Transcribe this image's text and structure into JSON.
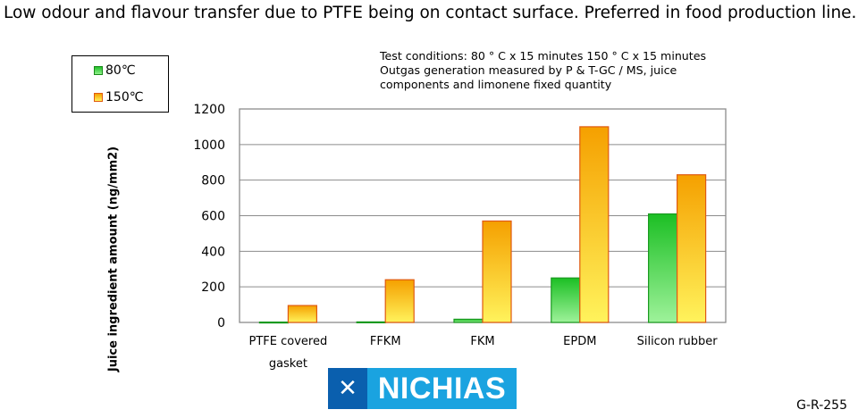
{
  "title": "Low odour and flavour transfer due to PTFE being on contact surface. Preferred in food production line.",
  "conditions": [
    "Test conditions: 80 ° C x 15 minutes 150 ° C x 15 minutes",
    "Outgas generation measured by P & T-GC / MS, juice",
    "components and limonene fixed quantity"
  ],
  "logo_text": "NICHIAS",
  "doc_code": "G-R-255",
  "colors": {
    "green": "#22c02a",
    "orange": "#f5a000",
    "yellow": "#fff25a",
    "border_orange": "#e05a10"
  },
  "chart_data": {
    "type": "bar",
    "title": "",
    "xlabel": "",
    "ylabel": "Juice ingredient amount  (ng/mm2)",
    "ylim": [
      0,
      1200
    ],
    "yticks": [
      0,
      200,
      400,
      600,
      800,
      1000,
      1200
    ],
    "grid": true,
    "legend_position": "top-left",
    "categories": [
      [
        "PTFE covered",
        "gasket"
      ],
      [
        "FFKM"
      ],
      [
        "FKM"
      ],
      [
        "EPDM"
      ],
      [
        "Silicon rubber"
      ]
    ],
    "series": [
      {
        "name": "80℃",
        "values": [
          2,
          3,
          18,
          250,
          610
        ]
      },
      {
        "name": "150℃",
        "values": [
          95,
          240,
          570,
          1100,
          830
        ]
      }
    ]
  }
}
